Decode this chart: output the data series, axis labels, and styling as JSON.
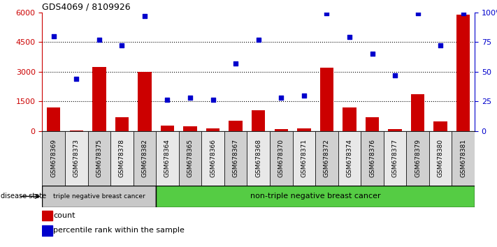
{
  "title": "GDS4069 / 8109926",
  "samples": [
    "GSM678369",
    "GSM678373",
    "GSM678375",
    "GSM678378",
    "GSM678382",
    "GSM678364",
    "GSM678365",
    "GSM678366",
    "GSM678367",
    "GSM678368",
    "GSM678370",
    "GSM678371",
    "GSM678372",
    "GSM678374",
    "GSM678376",
    "GSM678377",
    "GSM678379",
    "GSM678380",
    "GSM678381"
  ],
  "counts": [
    1200,
    25,
    3250,
    700,
    3000,
    280,
    230,
    120,
    530,
    1050,
    80,
    120,
    3200,
    1180,
    680,
    100,
    1850,
    480,
    5900
  ],
  "percentiles": [
    80,
    44,
    77,
    72,
    97,
    26,
    28,
    26,
    57,
    77,
    28,
    30,
    99,
    79,
    65,
    47,
    99,
    72,
    99
  ],
  "group1_count": 5,
  "group1_label": "triple negative breast cancer",
  "group2_label": "non-triple negative breast cancer",
  "left_ylim": [
    0,
    6000
  ],
  "left_yticks": [
    0,
    1500,
    3000,
    4500,
    6000
  ],
  "right_ylim": [
    0,
    100
  ],
  "right_yticks": [
    0,
    25,
    50,
    75,
    100
  ],
  "bar_color": "#cc0000",
  "scatter_color": "#0000cc",
  "cell_colors": [
    "#d0d0d0",
    "#e8e8e8"
  ],
  "group1_bg": "#c8c8c8",
  "group2_bg": "#55cc44"
}
